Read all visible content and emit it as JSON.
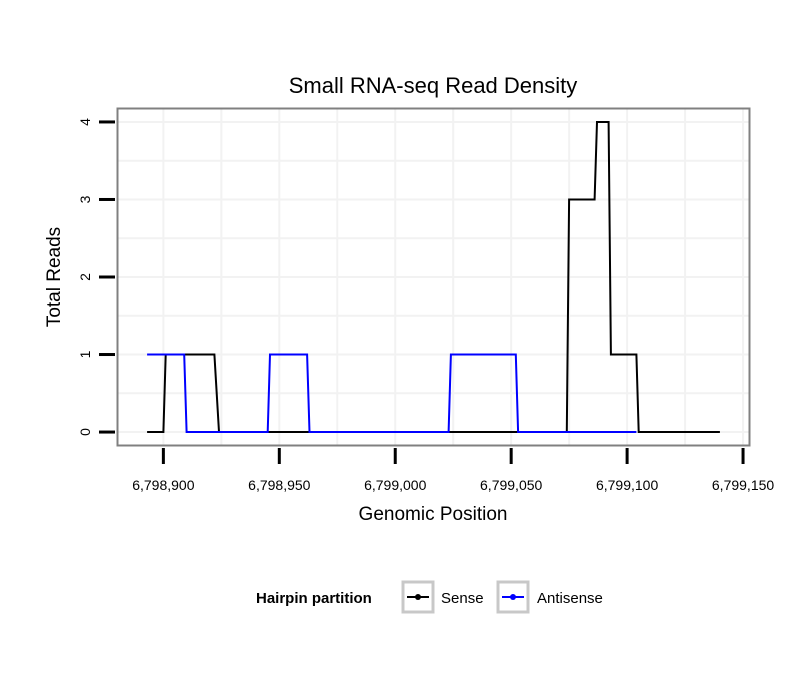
{
  "chart_data": {
    "type": "line",
    "title": "Small RNA-seq Read Density",
    "xlabel": "Genomic Position",
    "ylabel": "Total Reads",
    "xlim": [
      6798880,
      6799153
    ],
    "ylim": [
      -0.18,
      4.18
    ],
    "x_ticks": [
      6798900,
      6798950,
      6799000,
      6799050,
      6799100,
      6799150
    ],
    "x_tick_labels": [
      "6,798,900",
      "6,798,950",
      "6,799,000",
      "6,799,050",
      "6,799,100",
      "6,799,150"
    ],
    "y_ticks": [
      0,
      1,
      2,
      3,
      4
    ],
    "y_tick_labels": [
      "0",
      "1",
      "2",
      "3",
      "4"
    ],
    "grid": true,
    "legend": {
      "title": "Hairpin partition",
      "position": "bottom"
    },
    "series": [
      {
        "name": "Sense",
        "color": "#000000",
        "x": [
          6798893,
          6798900,
          6798901,
          6798922,
          6798924,
          6799074,
          6799075,
          6799086,
          6799087,
          6799092,
          6799093,
          6799104,
          6799105,
          6799140
        ],
        "y": [
          0,
          0,
          1,
          1,
          0,
          0,
          3,
          3,
          4,
          4,
          1,
          1,
          0,
          0
        ]
      },
      {
        "name": "Antisense",
        "color": "#0000ff",
        "x": [
          6798893,
          6798909,
          6798910,
          6798945,
          6798946,
          6798962,
          6798963,
          6799023,
          6799024,
          6799052,
          6799053,
          6799104
        ],
        "y": [
          1,
          1,
          0,
          0,
          1,
          1,
          0,
          0,
          1,
          1,
          0,
          0
        ]
      }
    ]
  }
}
